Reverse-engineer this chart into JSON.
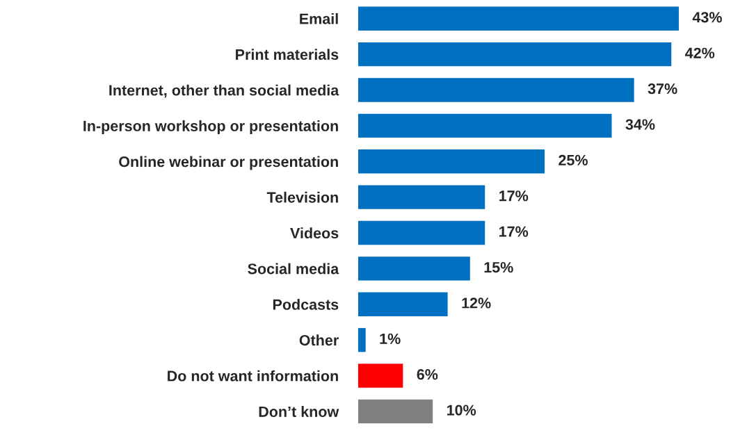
{
  "chart_data": {
    "type": "bar",
    "orientation": "horizontal",
    "categories": [
      "Email",
      "Print materials",
      "Internet, other than social media",
      "In-person workshop or presentation",
      "Online webinar or presentation",
      "Television",
      "Videos",
      "Social media",
      "Podcasts",
      "Other",
      "Do not want information",
      "Don’t know"
    ],
    "values": [
      43,
      42,
      37,
      34,
      25,
      17,
      17,
      15,
      12,
      1,
      6,
      10
    ],
    "value_labels": [
      "43%",
      "42%",
      "37%",
      "34%",
      "25%",
      "17%",
      "17%",
      "15%",
      "12%",
      "1%",
      "6%",
      "10%"
    ],
    "colors": [
      "#0070c0",
      "#0070c0",
      "#0070c0",
      "#0070c0",
      "#0070c0",
      "#0070c0",
      "#0070c0",
      "#0070c0",
      "#0070c0",
      "#0070c0",
      "#ff0000",
      "#808080"
    ],
    "grid": false,
    "legend": false
  }
}
